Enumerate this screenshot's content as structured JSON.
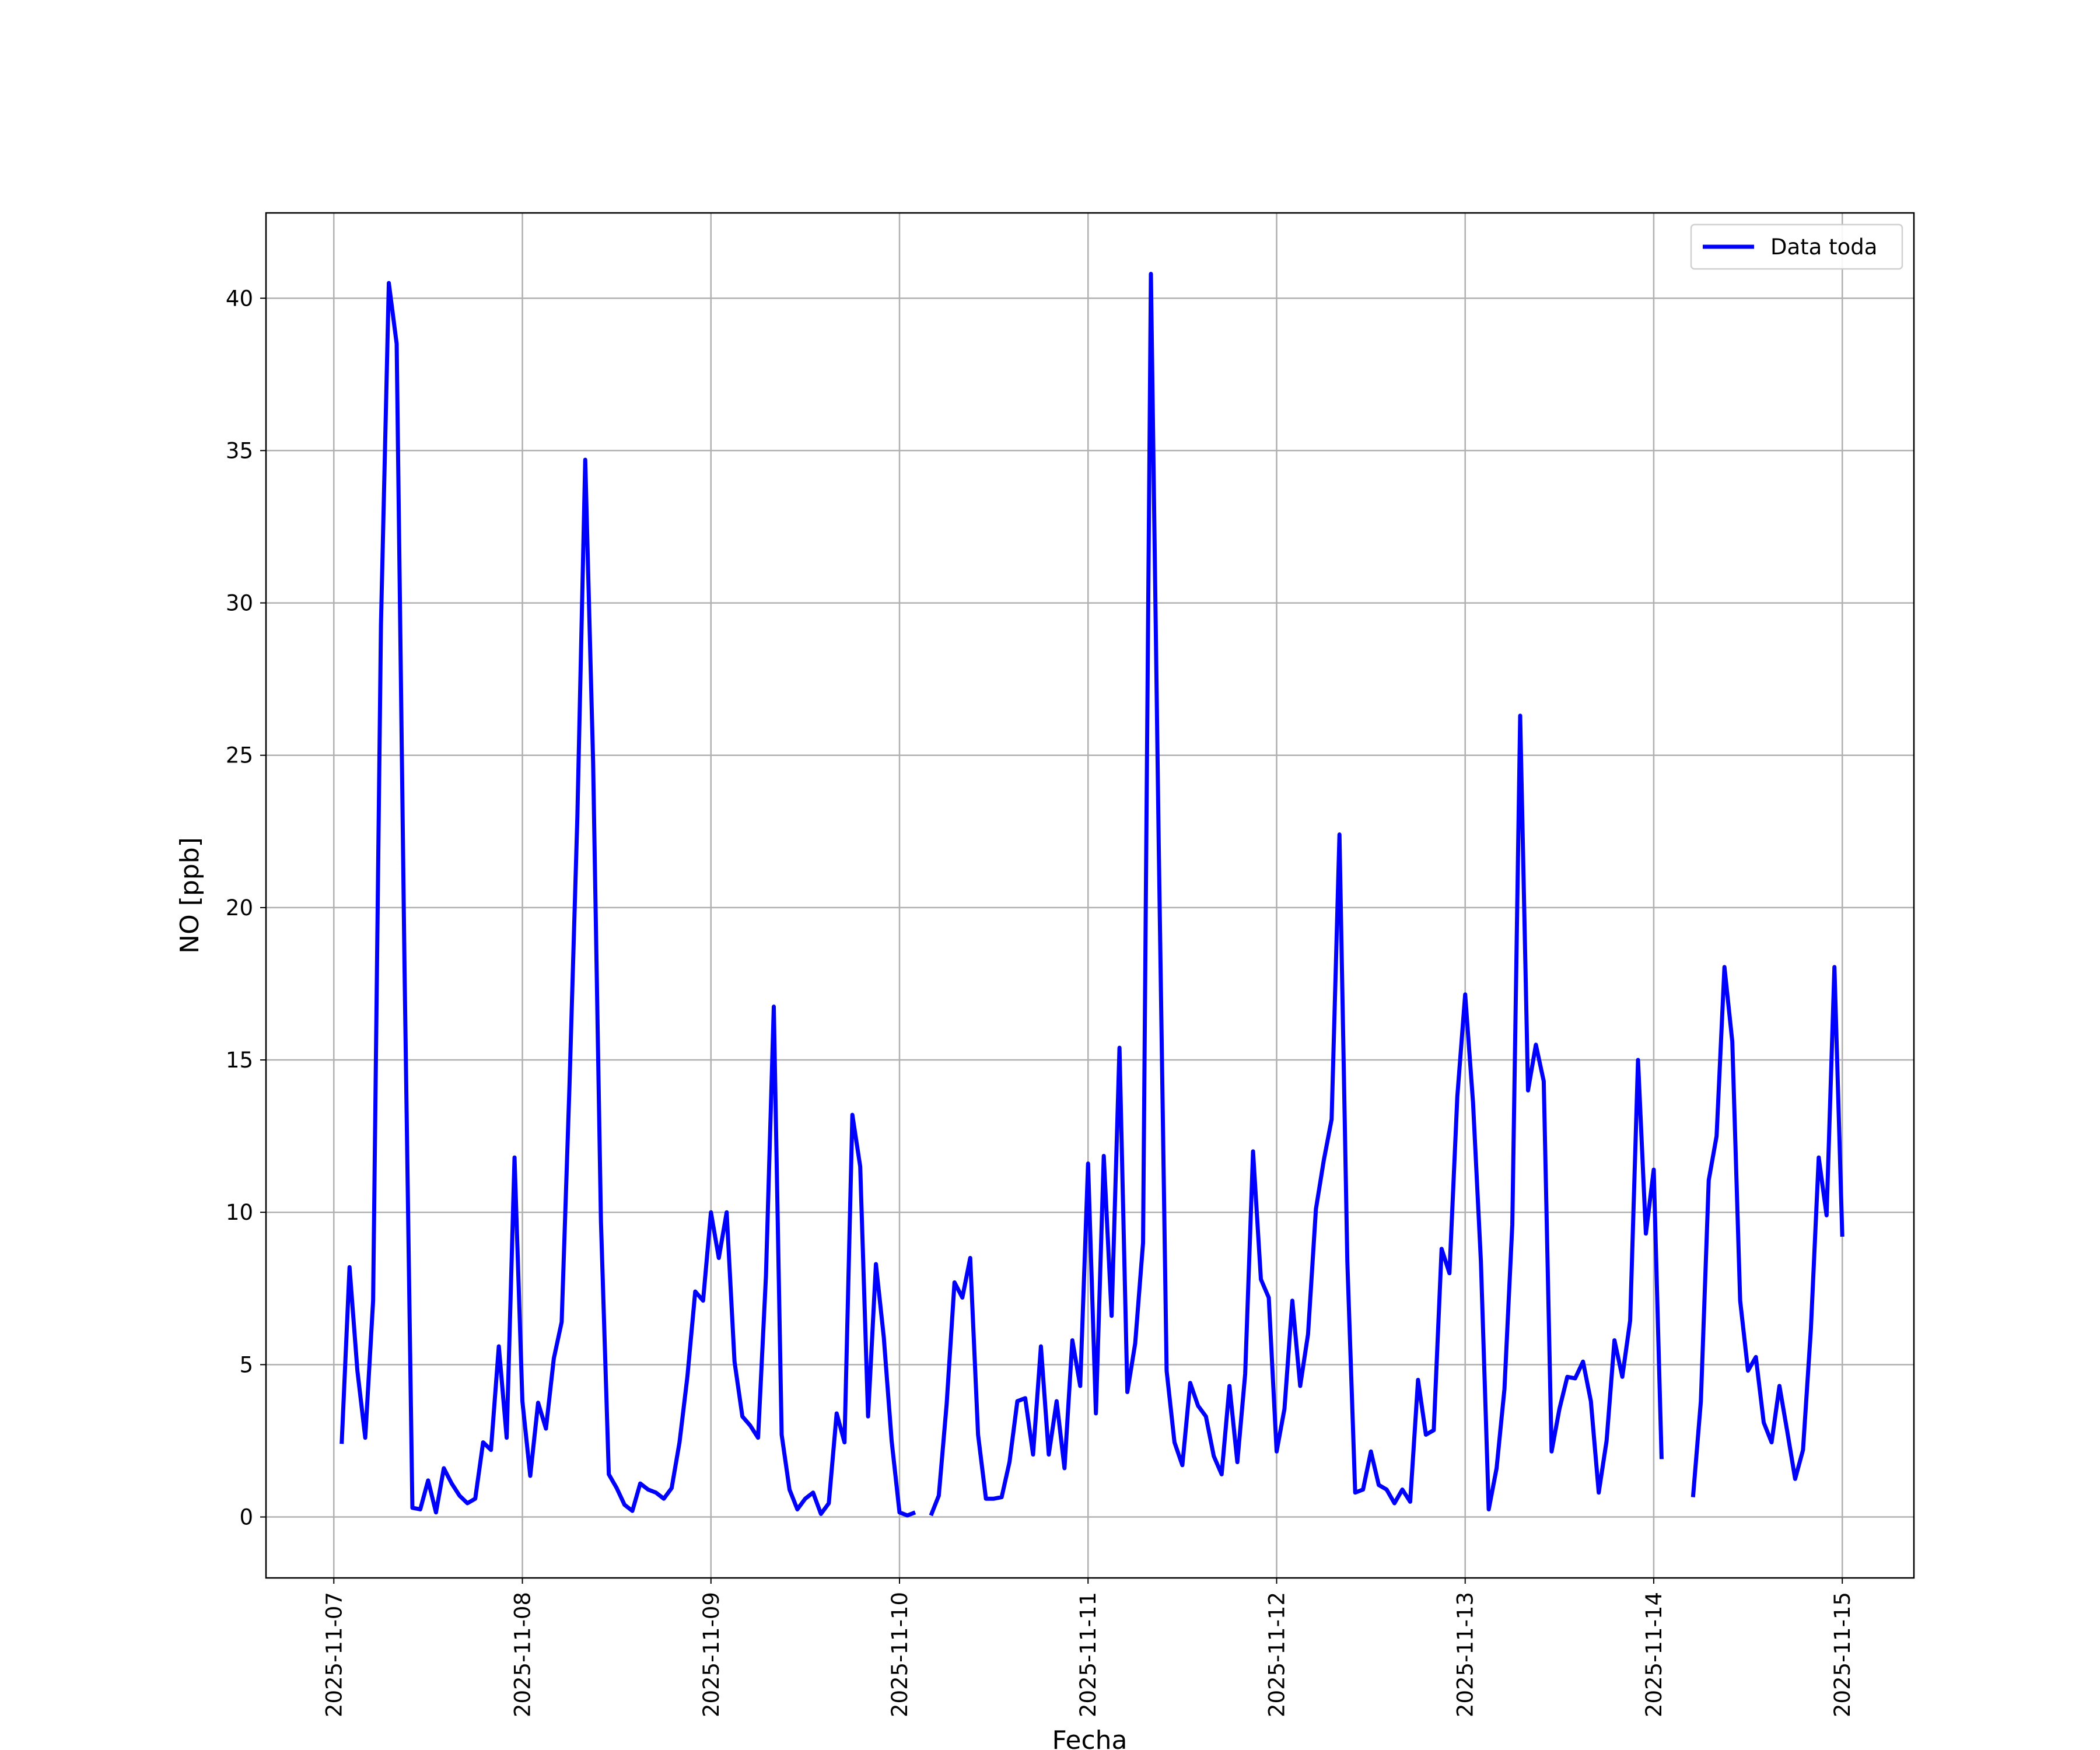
{
  "chart_data": {
    "type": "line",
    "x_label": "Fecha",
    "y_label": "NO [ppb]",
    "x": [
      "2025-11-07 01:00",
      "2025-11-07 02:00",
      "2025-11-07 03:00",
      "2025-11-07 04:00",
      "2025-11-07 05:00",
      "2025-11-07 06:00",
      "2025-11-07 07:00",
      "2025-11-07 08:00",
      "2025-11-07 09:00",
      "2025-11-07 10:00",
      "2025-11-07 11:00",
      "2025-11-07 12:00",
      "2025-11-07 13:00",
      "2025-11-07 14:00",
      "2025-11-07 15:00",
      "2025-11-07 16:00",
      "2025-11-07 17:00",
      "2025-11-07 18:00",
      "2025-11-07 19:00",
      "2025-11-07 20:00",
      "2025-11-07 21:00",
      "2025-11-07 22:00",
      "2025-11-07 23:00",
      "2025-11-08 00:00",
      "2025-11-08 01:00",
      "2025-11-08 02:00",
      "2025-11-08 03:00",
      "2025-11-08 04:00",
      "2025-11-08 05:00",
      "2025-11-08 06:00",
      "2025-11-08 07:00",
      "2025-11-08 08:00",
      "2025-11-08 09:00",
      "2025-11-08 10:00",
      "2025-11-08 11:00",
      "2025-11-08 12:00",
      "2025-11-08 13:00",
      "2025-11-08 14:00",
      "2025-11-08 15:00",
      "2025-11-08 16:00",
      "2025-11-08 17:00",
      "2025-11-08 18:00",
      "2025-11-08 19:00",
      "2025-11-08 20:00",
      "2025-11-08 21:00",
      "2025-11-08 22:00",
      "2025-11-08 23:00",
      "2025-11-09 00:00",
      "2025-11-09 01:00",
      "2025-11-09 02:00",
      "2025-11-09 03:00",
      "2025-11-09 04:00",
      "2025-11-09 05:00",
      "2025-11-09 06:00",
      "2025-11-09 07:00",
      "2025-11-09 08:00",
      "2025-11-09 09:00",
      "2025-11-09 10:00",
      "2025-11-09 11:00",
      "2025-11-09 12:00",
      "2025-11-09 13:00",
      "2025-11-09 14:00",
      "2025-11-09 15:00",
      "2025-11-09 16:00",
      "2025-11-09 17:00",
      "2025-11-09 18:00",
      "2025-11-09 19:00",
      "2025-11-09 20:00",
      "2025-11-09 21:00",
      "2025-11-09 22:00",
      "2025-11-09 23:00",
      "2025-11-10 00:00",
      "2025-11-10 01:00",
      "2025-11-10 02:00",
      "2025-11-10 03:00",
      "2025-11-10 04:00",
      "2025-11-10 05:00",
      "2025-11-10 06:00",
      "2025-11-10 07:00",
      "2025-11-10 08:00",
      "2025-11-10 09:00",
      "2025-11-10 10:00",
      "2025-11-10 11:00",
      "2025-11-10 12:00",
      "2025-11-10 13:00",
      "2025-11-10 14:00",
      "2025-11-10 15:00",
      "2025-11-10 16:00",
      "2025-11-10 17:00",
      "2025-11-10 18:00",
      "2025-11-10 19:00",
      "2025-11-10 20:00",
      "2025-11-10 21:00",
      "2025-11-10 22:00",
      "2025-11-10 23:00",
      "2025-11-11 00:00",
      "2025-11-11 01:00",
      "2025-11-11 02:00",
      "2025-11-11 03:00",
      "2025-11-11 04:00",
      "2025-11-11 05:00",
      "2025-11-11 06:00",
      "2025-11-11 07:00",
      "2025-11-11 08:00",
      "2025-11-11 09:00",
      "2025-11-11 10:00",
      "2025-11-11 11:00",
      "2025-11-11 12:00",
      "2025-11-11 13:00",
      "2025-11-11 14:00",
      "2025-11-11 15:00",
      "2025-11-11 16:00",
      "2025-11-11 17:00",
      "2025-11-11 18:00",
      "2025-11-11 19:00",
      "2025-11-11 20:00",
      "2025-11-11 21:00",
      "2025-11-11 22:00",
      "2025-11-11 23:00",
      "2025-11-12 00:00",
      "2025-11-12 01:00",
      "2025-11-12 02:00",
      "2025-11-12 03:00",
      "2025-11-12 04:00",
      "2025-11-12 05:00",
      "2025-11-12 06:00",
      "2025-11-12 07:00",
      "2025-11-12 08:00",
      "2025-11-12 09:00",
      "2025-11-12 10:00",
      "2025-11-12 11:00",
      "2025-11-12 12:00",
      "2025-11-12 13:00",
      "2025-11-12 14:00",
      "2025-11-12 15:00",
      "2025-11-12 16:00",
      "2025-11-12 17:00",
      "2025-11-12 18:00",
      "2025-11-12 19:00",
      "2025-11-12 20:00",
      "2025-11-12 21:00",
      "2025-11-12 22:00",
      "2025-11-12 23:00",
      "2025-11-13 00:00",
      "2025-11-13 01:00",
      "2025-11-13 02:00",
      "2025-11-13 03:00",
      "2025-11-13 04:00",
      "2025-11-13 05:00",
      "2025-11-13 06:00",
      "2025-11-13 07:00",
      "2025-11-13 08:00",
      "2025-11-13 09:00",
      "2025-11-13 10:00",
      "2025-11-13 11:00",
      "2025-11-13 12:00",
      "2025-11-13 13:00",
      "2025-11-13 14:00",
      "2025-11-13 15:00",
      "2025-11-13 16:00",
      "2025-11-13 17:00",
      "2025-11-13 18:00",
      "2025-11-13 19:00",
      "2025-11-13 20:00",
      "2025-11-13 21:00",
      "2025-11-13 22:00",
      "2025-11-13 23:00",
      "2025-11-14 00:00",
      "2025-11-14 01:00",
      "2025-11-14 02:00",
      "2025-11-14 03:00",
      "2025-11-14 04:00",
      "2025-11-14 05:00",
      "2025-11-14 06:00",
      "2025-11-14 07:00",
      "2025-11-14 08:00",
      "2025-11-14 09:00",
      "2025-11-14 10:00",
      "2025-11-14 11:00",
      "2025-11-14 12:00",
      "2025-11-14 13:00",
      "2025-11-14 14:00",
      "2025-11-14 15:00",
      "2025-11-14 16:00",
      "2025-11-14 17:00",
      "2025-11-14 18:00",
      "2025-11-14 19:00",
      "2025-11-14 20:00",
      "2025-11-14 21:00",
      "2025-11-14 22:00",
      "2025-11-14 23:00",
      "2025-11-15 00:00"
    ],
    "series": [
      {
        "name": "Data toda",
        "color": "#0000ff",
        "values": [
          2.4,
          8.2,
          4.8,
          2.6,
          7.1,
          29.3,
          40.5,
          38.5,
          18,
          0.3,
          0.25,
          1.2,
          0.15,
          1.6,
          1.1,
          0.7,
          0.45,
          0.6,
          2.45,
          2.2,
          5.6,
          2.6,
          11.8,
          3.8,
          1.35,
          3.75,
          2.9,
          5.2,
          6.4,
          14.2,
          23,
          34.7,
          24.8,
          9.7,
          1.4,
          0.95,
          0.4,
          0.2,
          1.1,
          0.9,
          0.8,
          0.6,
          0.95,
          2.45,
          4.6,
          7.4,
          7.1,
          10.0,
          8.5,
          10.0,
          5.1,
          3.3,
          3.0,
          2.6,
          7.9,
          16.75,
          2.7,
          0.9,
          0.25,
          0.6,
          0.8,
          0.1,
          0.45,
          3.4,
          2.45,
          13.2,
          11.5,
          3.3,
          8.3,
          5.9,
          2.5,
          0.15,
          0.05,
          0.15,
          null,
          0.05,
          0.7,
          3.7,
          7.7,
          7.2,
          8.5,
          2.7,
          0.6,
          0.6,
          0.65,
          1.8,
          3.8,
          3.9,
          2.05,
          5.6,
          2.05,
          3.8,
          1.6,
          5.8,
          4.3,
          11.6,
          3.4,
          11.85,
          6.6,
          15.4,
          4.1,
          5.7,
          9.0,
          40.8,
          22,
          4.8,
          2.45,
          1.7,
          4.4,
          3.65,
          3.3,
          2.0,
          1.4,
          4.3,
          1.8,
          4.7,
          12.0,
          7.8,
          7.2,
          2.15,
          3.55,
          7.1,
          4.3,
          6.0,
          10.1,
          11.7,
          13.05,
          22.4,
          8.4,
          0.8,
          0.9,
          2.15,
          1.05,
          0.9,
          0.45,
          0.9,
          0.5,
          4.5,
          2.7,
          2.85,
          8.8,
          8.0,
          13.8,
          17.15,
          13.6,
          8.4,
          0.25,
          1.6,
          4.2,
          9.6,
          26.3,
          14.0,
          15.5,
          14.3,
          2.15,
          3.55,
          4.6,
          4.55,
          5.1,
          3.8,
          0.8,
          2.5,
          5.8,
          4.6,
          6.45,
          15.0,
          9.3,
          11.4,
          1.9,
          null,
          null,
          null,
          0.65,
          3.8,
          11.05,
          12.5,
          18.05,
          15.6,
          7.1,
          4.8,
          5.25,
          3.1,
          2.45,
          4.3,
          2.8,
          1.25,
          2.2,
          6.15,
          11.8,
          9.9,
          18.05,
          9.2
        ]
      }
    ],
    "xlim": [
      "2025-11-06 15:22",
      "2025-11-15 09:07"
    ],
    "xticks": [
      "2025-11-07",
      "2025-11-08",
      "2025-11-09",
      "2025-11-10",
      "2025-11-11",
      "2025-11-12",
      "2025-11-13",
      "2025-11-14",
      "2025-11-15"
    ],
    "ylim": [
      -2.0,
      42.8
    ],
    "yticks": [
      0,
      5,
      10,
      15,
      20,
      25,
      30,
      35,
      40
    ],
    "grid": true,
    "legend": "upper right"
  }
}
